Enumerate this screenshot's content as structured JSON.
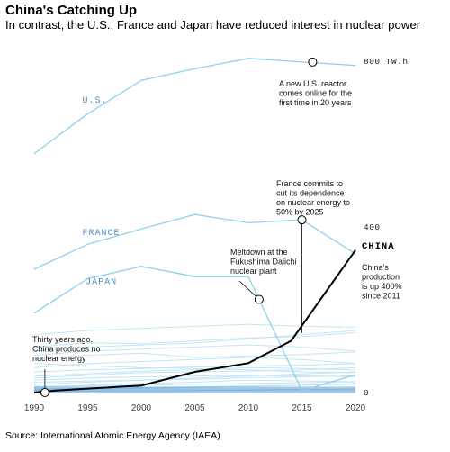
{
  "header": {
    "title": "China's Catching Up",
    "subtitle": "In contrast, the U.S., France and Japan have reduced interest in nuclear power"
  },
  "source": "Source: International Atomic Energy Agency (IAEA)",
  "colors": {
    "highlight": "#000000",
    "countries": "#8fd0ee",
    "faint": "#c2e4f4",
    "label": "#4a8ec9"
  },
  "chart_data": {
    "type": "line",
    "unit": "TW.h",
    "x_ticks": [
      "1990",
      "1995",
      "2000",
      "2005",
      "2010",
      "2015",
      "2020"
    ],
    "y_tick_labels": [
      "800 TW.h",
      "400",
      "0"
    ],
    "xlim": [
      1990,
      2020
    ],
    "ylim": [
      0,
      800
    ],
    "series": [
      {
        "name": "U.S.",
        "x": [
          1990,
          1995,
          2000,
          2005,
          2010,
          2015,
          2020
        ],
        "values": [
          577,
          673,
          754,
          782,
          807,
          798,
          790
        ]
      },
      {
        "name": "FRANCE",
        "x": [
          1990,
          1995,
          2000,
          2005,
          2010,
          2015,
          2020
        ],
        "values": [
          298,
          358,
          395,
          430,
          410,
          417,
          335
        ]
      },
      {
        "name": "JAPAN",
        "x": [
          1990,
          1995,
          2000,
          2005,
          2010,
          2015,
          2020
        ],
        "values": [
          192,
          275,
          305,
          280,
          280,
          5,
          43
        ]
      },
      {
        "name": "CHINA",
        "x": [
          1990,
          1992,
          2000,
          2005,
          2010,
          2014,
          2020
        ],
        "values": [
          0,
          5,
          17,
          50,
          71,
          125,
          344
        ],
        "highlight": true
      }
    ],
    "annotations": [
      {
        "text": [
          "A new U.S. reactor",
          "comes online for the",
          "first time in 20 years"
        ],
        "x": 2016,
        "y": 798
      },
      {
        "text": [
          "France commits to",
          "cut its dependence",
          "on nuclear energy to",
          "50% by 2025"
        ],
        "x": 2015,
        "y": 417
      },
      {
        "text": [
          "Meltdown at the",
          "Fukushima Daiichi",
          "nuclear plant"
        ],
        "x": 2011,
        "y": 225
      },
      {
        "text": [
          "Thirty years ago,",
          "China produces no",
          "nuclear energy"
        ],
        "x": 1991,
        "y": 0
      },
      {
        "text": [
          "China's",
          "production",
          "is up 400%",
          "since 2011"
        ],
        "x": 2020,
        "y": 344
      }
    ],
    "china_label": "CHINA"
  }
}
